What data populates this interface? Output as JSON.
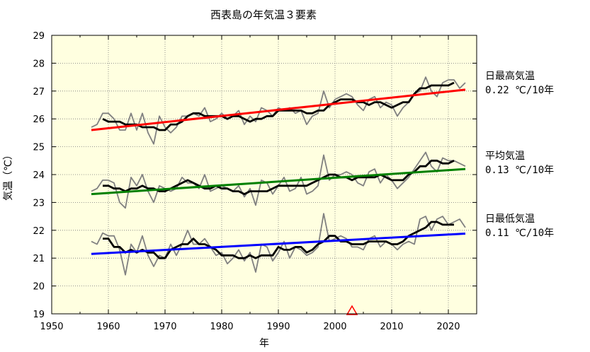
{
  "chart_data": {
    "type": "line",
    "title": "西表島の年気温３要素",
    "xlabel": "年",
    "ylabel": "気温（℃）",
    "xlim": [
      1950,
      2025
    ],
    "ylim": [
      19,
      29
    ],
    "xticks": [
      1950,
      1960,
      1970,
      1980,
      1990,
      2000,
      2010,
      2020
    ],
    "yticks": [
      19,
      20,
      21,
      22,
      23,
      24,
      25,
      26,
      27,
      28,
      29
    ],
    "grid": true,
    "colors": {
      "background": "#ffffe0",
      "annual": "#808080",
      "moving_average": "#000000",
      "trend_max": "#ff0000",
      "trend_mean": "#008000",
      "trend_min": "#0000ff",
      "marker": "#ff0000"
    },
    "x": [
      1957,
      1958,
      1959,
      1960,
      1961,
      1962,
      1963,
      1964,
      1965,
      1966,
      1967,
      1968,
      1969,
      1970,
      1971,
      1972,
      1973,
      1974,
      1975,
      1976,
      1977,
      1978,
      1979,
      1980,
      1981,
      1982,
      1983,
      1984,
      1985,
      1986,
      1987,
      1988,
      1989,
      1990,
      1991,
      1992,
      1993,
      1994,
      1995,
      1996,
      1997,
      1998,
      1999,
      2000,
      2001,
      2002,
      2003,
      2004,
      2005,
      2006,
      2007,
      2008,
      2009,
      2010,
      2011,
      2012,
      2013,
      2014,
      2015,
      2016,
      2017,
      2018,
      2019,
      2020,
      2021,
      2022,
      2023
    ],
    "series": [
      {
        "name": "日最高気温",
        "annual": [
          25.7,
          25.8,
          26.2,
          26.2,
          26.0,
          25.6,
          25.6,
          26.2,
          25.6,
          26.2,
          25.5,
          25.1,
          26.1,
          25.7,
          25.5,
          25.7,
          26.1,
          26.1,
          26.2,
          26.1,
          26.4,
          25.9,
          26.0,
          26.2,
          26.0,
          26.1,
          26.3,
          25.8,
          26.1,
          25.9,
          26.4,
          26.3,
          26.1,
          26.4,
          26.3,
          26.4,
          26.2,
          26.3,
          25.8,
          26.1,
          26.2,
          27.0,
          26.4,
          26.7,
          26.8,
          26.9,
          26.8,
          26.5,
          26.3,
          26.7,
          26.8,
          26.4,
          26.6,
          26.5,
          26.1,
          26.4,
          26.6,
          26.9,
          27.0,
          27.5,
          27.0,
          26.8,
          27.3,
          27.4,
          27.4,
          27.1,
          27.3
        ],
        "moving_average": [
          null,
          null,
          26.0,
          25.9,
          25.9,
          25.9,
          25.8,
          25.8,
          25.8,
          25.7,
          25.7,
          25.7,
          25.6,
          25.6,
          25.8,
          25.8,
          25.9,
          26.1,
          26.2,
          26.2,
          26.1,
          26.1,
          26.1,
          26.1,
          26.0,
          26.1,
          26.1,
          26.0,
          25.9,
          26.0,
          26.0,
          26.1,
          26.1,
          26.3,
          26.3,
          26.3,
          26.3,
          26.3,
          26.2,
          26.2,
          26.3,
          26.3,
          26.5,
          26.6,
          26.7,
          26.7,
          26.7,
          26.6,
          26.6,
          26.5,
          26.6,
          26.6,
          26.5,
          26.4,
          26.5,
          26.6,
          26.6,
          26.9,
          27.1,
          27.1,
          27.2,
          27.2,
          27.2,
          27.2,
          27.3,
          null,
          null
        ],
        "trend": {
          "x": [
            1957,
            2023
          ],
          "y": [
            25.6,
            27.05
          ]
        },
        "annotation": "0.22 ℃/10年"
      },
      {
        "name": "平均気温",
        "annual": [
          23.4,
          23.5,
          23.8,
          23.8,
          23.7,
          23.0,
          22.8,
          23.9,
          23.6,
          24.0,
          23.4,
          23.0,
          23.6,
          23.5,
          23.4,
          23.5,
          23.9,
          23.7,
          23.7,
          23.5,
          24.0,
          23.4,
          23.5,
          23.6,
          23.5,
          23.4,
          23.6,
          23.2,
          23.5,
          22.9,
          23.8,
          23.7,
          23.3,
          23.6,
          23.9,
          23.4,
          23.5,
          23.9,
          23.3,
          23.4,
          23.6,
          24.7,
          23.8,
          24.0,
          24.0,
          24.1,
          24.0,
          23.7,
          23.6,
          24.1,
          24.2,
          23.7,
          24.0,
          23.8,
          23.5,
          23.7,
          23.9,
          24.2,
          24.5,
          24.8,
          24.3,
          24.1,
          24.6,
          24.5,
          24.5,
          24.4,
          24.3
        ],
        "moving_average": [
          null,
          null,
          23.6,
          23.6,
          23.5,
          23.5,
          23.4,
          23.5,
          23.5,
          23.6,
          23.5,
          23.5,
          23.4,
          23.4,
          23.5,
          23.6,
          23.7,
          23.8,
          23.7,
          23.6,
          23.5,
          23.5,
          23.6,
          23.5,
          23.5,
          23.4,
          23.4,
          23.3,
          23.4,
          23.4,
          23.4,
          23.4,
          23.5,
          23.6,
          23.6,
          23.6,
          23.6,
          23.6,
          23.6,
          23.7,
          23.8,
          23.9,
          24.0,
          24.0,
          23.9,
          23.9,
          23.8,
          23.9,
          23.9,
          23.9,
          23.9,
          24.0,
          23.9,
          23.8,
          23.8,
          23.8,
          24.0,
          24.1,
          24.3,
          24.3,
          24.5,
          24.5,
          24.4,
          24.4,
          24.5,
          null,
          null
        ],
        "trend": {
          "x": [
            1957,
            2023
          ],
          "y": [
            23.3,
            24.2
          ]
        },
        "annotation": "0.13 ℃/10年"
      },
      {
        "name": "日最低気温",
        "annual": [
          21.6,
          21.5,
          21.9,
          21.8,
          21.8,
          21.3,
          20.4,
          21.5,
          21.2,
          21.8,
          21.1,
          20.7,
          21.1,
          21.0,
          21.5,
          21.1,
          21.5,
          22.0,
          21.5,
          21.5,
          21.7,
          21.4,
          21.1,
          21.2,
          20.8,
          21.0,
          21.3,
          20.9,
          21.2,
          20.5,
          21.5,
          21.4,
          20.9,
          21.2,
          21.6,
          21.0,
          21.4,
          21.3,
          21.1,
          21.2,
          21.4,
          22.6,
          21.6,
          21.7,
          21.8,
          21.7,
          21.4,
          21.4,
          21.3,
          21.7,
          21.8,
          21.4,
          21.6,
          21.5,
          21.3,
          21.5,
          21.6,
          21.5,
          22.4,
          22.5,
          22.0,
          22.4,
          22.5,
          22.2,
          22.3,
          22.4,
          22.1
        ],
        "moving_average": [
          null,
          null,
          21.7,
          21.7,
          21.4,
          21.4,
          21.2,
          21.3,
          21.2,
          21.3,
          21.2,
          21.2,
          21.0,
          21.0,
          21.3,
          21.4,
          21.5,
          21.5,
          21.7,
          21.5,
          21.5,
          21.4,
          21.3,
          21.1,
          21.1,
          21.1,
          21.0,
          21.0,
          21.1,
          21.0,
          21.1,
          21.1,
          21.1,
          21.4,
          21.3,
          21.3,
          21.4,
          21.4,
          21.2,
          21.3,
          21.5,
          21.6,
          21.8,
          21.8,
          21.6,
          21.6,
          21.5,
          21.5,
          21.5,
          21.6,
          21.6,
          21.6,
          21.6,
          21.5,
          21.5,
          21.6,
          21.8,
          21.9,
          22.0,
          22.1,
          22.3,
          22.3,
          22.2,
          22.2,
          22.2,
          null,
          null
        ],
        "trend": {
          "x": [
            1957,
            2023
          ],
          "y": [
            21.15,
            21.88
          ]
        },
        "annotation": "0.11 ℃/10年"
      }
    ],
    "markers": [
      {
        "shape": "triangle",
        "x": 2003,
        "y": 19
      }
    ]
  }
}
